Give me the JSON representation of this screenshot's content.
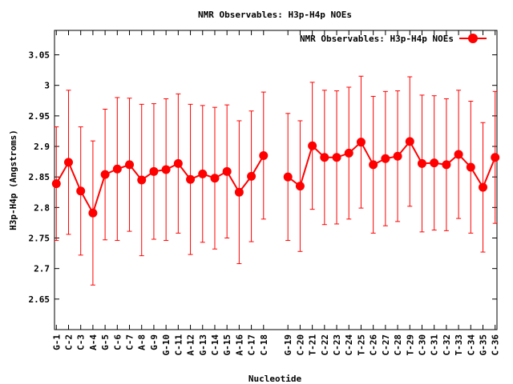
{
  "chart_data": {
    "type": "line",
    "title": "NMR Observables: H3p-H4p NOEs",
    "xlabel": "Nucleotide",
    "ylabel": "H3p-H4p (Angstroms)",
    "ylim": [
      2.6,
      3.09
    ],
    "yticks": [
      "2.65",
      "2.7",
      "2.75",
      "2.8",
      "2.85",
      "2.9",
      "2.95",
      "3",
      "3.05"
    ],
    "ytick_values": [
      2.65,
      2.7,
      2.75,
      2.8,
      2.85,
      2.9,
      2.95,
      3.0,
      3.05
    ],
    "legend_position": "top-right",
    "grid": false,
    "series": [
      {
        "name": "NMR Observables: H3p-H4p NOEs",
        "color": "#ff0000",
        "points": [
          {
            "label": "G-1",
            "y": 2.839,
            "err": 0.093
          },
          {
            "label": "C-2",
            "y": 2.874,
            "err": 0.118
          },
          {
            "label": "C-3",
            "y": 2.827,
            "err": 0.105
          },
          {
            "label": "A-4",
            "y": 2.791,
            "err": 0.118
          },
          {
            "label": "G-5",
            "y": 2.854,
            "err": 0.107
          },
          {
            "label": "C-6",
            "y": 2.863,
            "err": 0.117
          },
          {
            "label": "C-7",
            "y": 2.87,
            "err": 0.109
          },
          {
            "label": "A-8",
            "y": 2.845,
            "err": 0.124
          },
          {
            "label": "G-9",
            "y": 2.859,
            "err": 0.111
          },
          {
            "label": "G-10",
            "y": 2.862,
            "err": 0.116
          },
          {
            "label": "C-11",
            "y": 2.872,
            "err": 0.114
          },
          {
            "label": "A-12",
            "y": 2.846,
            "err": 0.123
          },
          {
            "label": "G-13",
            "y": 2.855,
            "err": 0.112
          },
          {
            "label": "C-14",
            "y": 2.848,
            "err": 0.116
          },
          {
            "label": "G-15",
            "y": 2.859,
            "err": 0.109
          },
          {
            "label": "A-16",
            "y": 2.825,
            "err": 0.117
          },
          {
            "label": "C-17",
            "y": 2.851,
            "err": 0.107
          },
          {
            "label": "C-18",
            "y": 2.885,
            "err": 0.104
          },
          {
            "label": "G-19",
            "y": 2.85,
            "err": 0.104
          },
          {
            "label": "C-20",
            "y": 2.835,
            "err": 0.107
          },
          {
            "label": "T-21",
            "y": 2.901,
            "err": 0.104
          },
          {
            "label": "C-22",
            "y": 2.882,
            "err": 0.11
          },
          {
            "label": "C-23",
            "y": 2.882,
            "err": 0.109
          },
          {
            "label": "C-24",
            "y": 2.889,
            "err": 0.108
          },
          {
            "label": "T-25",
            "y": 2.907,
            "err": 0.108
          },
          {
            "label": "C-26",
            "y": 2.87,
            "err": 0.112
          },
          {
            "label": "C-27",
            "y": 2.88,
            "err": 0.11
          },
          {
            "label": "C-28",
            "y": 2.884,
            "err": 0.107
          },
          {
            "label": "T-29",
            "y": 2.908,
            "err": 0.106
          },
          {
            "label": "C-30",
            "y": 2.872,
            "err": 0.112
          },
          {
            "label": "C-31",
            "y": 2.873,
            "err": 0.11
          },
          {
            "label": "C-32",
            "y": 2.87,
            "err": 0.108
          },
          {
            "label": "T-33",
            "y": 2.887,
            "err": 0.105
          },
          {
            "label": "C-34",
            "y": 2.866,
            "err": 0.108
          },
          {
            "label": "G-35",
            "y": 2.833,
            "err": 0.106
          },
          {
            "label": "C-36",
            "y": 2.882,
            "err": 0.108
          }
        ]
      }
    ],
    "x_positions": [
      1,
      2,
      3,
      4,
      5,
      6,
      7,
      8,
      9,
      10,
      11,
      12,
      13,
      14,
      15,
      16,
      17,
      18,
      20,
      21,
      22,
      23,
      24,
      25,
      26,
      27,
      28,
      29,
      30,
      31,
      32,
      33,
      34,
      35,
      36,
      37
    ],
    "xlim": [
      0.85,
      37.15
    ],
    "segments_break_after": "C-18"
  }
}
